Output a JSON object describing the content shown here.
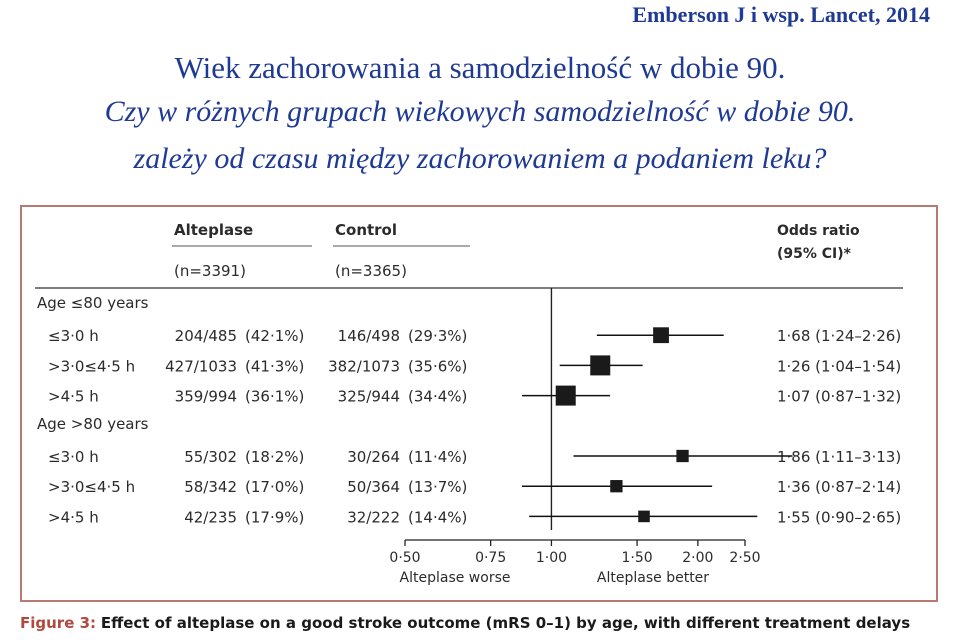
{
  "header": {
    "citation": "Emberson J i wsp. Lancet, 2014",
    "title_line1": "Wiek zachorowania a samodzielność w dobie 90.",
    "title_line2": "Czy w różnych grupach wiekowych samodzielność w dobie 90.",
    "title_line3": "zależy  od  czasu między zachorowaniem a podaniem leku?"
  },
  "table_headers": {
    "alteplase": "Alteplase",
    "alteplase_n": "(n=3391)",
    "control": "Control",
    "control_n": "(n=3365)",
    "or_line1": "Odds ratio",
    "or_line2": "(95% CI)*"
  },
  "caption": {
    "label": "Figure 3:",
    "text": "Effect of alteplase on a good stroke outcome (mRS 0–1) by age, with different treatment delays"
  },
  "chart_data": {
    "type": "forest",
    "xscale": "log",
    "xlim": [
      0.5,
      2.5
    ],
    "ticks": [
      0.5,
      0.75,
      1.0,
      1.5,
      2.0,
      2.5
    ],
    "tick_labels": [
      "0·50",
      "0·75",
      "1·00",
      "1·50",
      "2·00",
      "2·50"
    ],
    "reference_line": 1.0,
    "xlabel_left": "Alteplase worse",
    "xlabel_right": "Alteplase better",
    "groups": [
      {
        "label": "Age ≤80 years",
        "rows": [
          {
            "label": "≤3·0 h",
            "alteplase": "204/485",
            "alteplase_pct": "(42·1%)",
            "control": "146/498",
            "control_pct": "(29·3%)",
            "or": 1.68,
            "lo": 1.24,
            "hi": 2.26,
            "or_text": "1·68 (1·24–2·26)",
            "weight": 0.7
          },
          {
            "label": ">3·0≤4·5 h",
            "alteplase": "427/1033",
            "alteplase_pct": "(41·3%)",
            "control": "382/1073",
            "control_pct": "(35·6%)",
            "or": 1.26,
            "lo": 1.04,
            "hi": 1.54,
            "or_text": "1·26 (1·04–1·54)",
            "weight": 1.0
          },
          {
            "label": ">4·5 h",
            "alteplase": "359/994",
            "alteplase_pct": "(36·1%)",
            "control": "325/944",
            "control_pct": "(34·4%)",
            "or": 1.07,
            "lo": 0.87,
            "hi": 1.32,
            "or_text": "1·07 (0·87–1·32)",
            "weight": 1.0
          }
        ]
      },
      {
        "label": "Age >80 years",
        "rows": [
          {
            "label": "≤3·0 h",
            "alteplase": "55/302",
            "alteplase_pct": "(18·2%)",
            "control": "30/264",
            "control_pct": "(11·4%)",
            "or": 1.86,
            "lo": 1.11,
            "hi": 3.13,
            "or_text": "1·86 (1·11–3·13)",
            "weight": 0.45
          },
          {
            "label": ">3·0≤4·5 h",
            "alteplase": "58/342",
            "alteplase_pct": "(17·0%)",
            "control": "50/364",
            "control_pct": "(13·7%)",
            "or": 1.36,
            "lo": 0.87,
            "hi": 2.14,
            "or_text": "1·36 (0·87–2·14)",
            "weight": 0.45
          },
          {
            "label": ">4·5 h",
            "alteplase": "42/235",
            "alteplase_pct": "(17·9%)",
            "control": "32/222",
            "control_pct": "(14·4%)",
            "or": 1.55,
            "lo": 0.9,
            "hi": 2.65,
            "or_text": "1·55 (0·90–2·65)",
            "weight": 0.4
          }
        ]
      }
    ]
  }
}
